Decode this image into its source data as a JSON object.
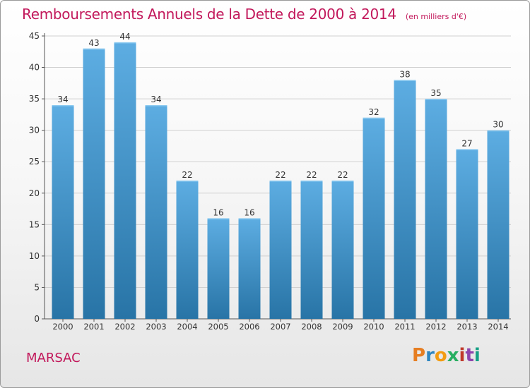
{
  "header": {
    "title": "Remboursements Annuels de la Dette de 2000 à 2014",
    "subtitle": "(en milliers d'€)"
  },
  "footer": {
    "commune": "MARSAC",
    "brand": "Proxiti"
  },
  "colors": {
    "accent": "#c2185b",
    "bar_top": "#5dade2",
    "bar_bottom": "#2874a6",
    "grid": "#d0d0d0",
    "axis_text": "#333333"
  },
  "chart_data": {
    "type": "bar",
    "categories": [
      "2000",
      "2001",
      "2002",
      "2003",
      "2004",
      "2005",
      "2006",
      "2007",
      "2008",
      "2009",
      "2010",
      "2011",
      "2012",
      "2013",
      "2014"
    ],
    "values": [
      34,
      43,
      44,
      34,
      22,
      16,
      16,
      22,
      22,
      22,
      32,
      38,
      35,
      27,
      30
    ],
    "title": "Remboursements Annuels de la Dette de 2000 à 2014",
    "subtitle": "(en milliers d'€)",
    "ylim": [
      0,
      45
    ],
    "yticks": [
      0,
      5,
      10,
      15,
      20,
      25,
      30,
      35,
      40,
      45
    ],
    "grid": true,
    "data_labels": true
  }
}
